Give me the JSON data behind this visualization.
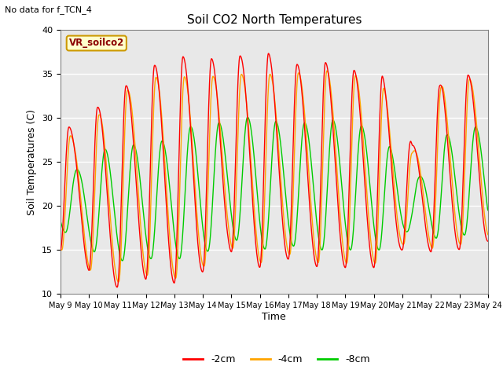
{
  "title": "Soil CO2 North Temperatures",
  "subtitle": "No data for f_TCN_4",
  "ylabel": "Soil Temperatures (C)",
  "xlabel": "Time",
  "legend_label": "VR_soilco2",
  "series_labels": [
    "-2cm",
    "-4cm",
    "-8cm"
  ],
  "series_colors": [
    "#ff0000",
    "#ffa500",
    "#00cc00"
  ],
  "ylim": [
    10,
    40
  ],
  "background_color": "#e8e8e8",
  "xtick_labels": [
    "May 9",
    "May 10",
    "May 11",
    "May 12",
    "May 13",
    "May 14",
    "May 15",
    "May 16",
    "May 17",
    "May 18",
    "May 19",
    "May 20",
    "May 21",
    "May 22",
    "May 23",
    "May 24"
  ],
  "ytick_labels": [
    10,
    15,
    20,
    25,
    30,
    35,
    40
  ],
  "figsize": [
    6.4,
    4.8
  ],
  "dpi": 100
}
